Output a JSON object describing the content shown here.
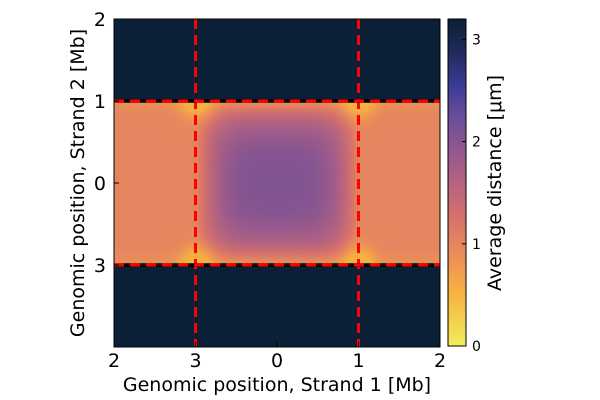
{
  "chart_data": {
    "type": "heatmap",
    "title": "",
    "xlabel": "Genomic position, Strand 1 [Mb]",
    "ylabel": "Genomic position, Strand 2 [Mb]",
    "x_ticks": [
      "2",
      "3",
      "0",
      "1",
      "2"
    ],
    "y_ticks": [
      "2",
      "1",
      "0",
      "3"
    ],
    "colorbar": {
      "label": "Average distance [μm]",
      "ticks": [
        "0",
        "1",
        "2",
        "3"
      ],
      "range": [
        0,
        3.2
      ],
      "colors": [
        "#f2ec5c",
        "#f8b340",
        "#eb8d59",
        "#d4706e",
        "#a45d88",
        "#6a4d9a",
        "#3a3b94",
        "#1f2a5c",
        "#0b2036"
      ]
    },
    "regions": {
      "background_value": 3.2,
      "band_y_range": [
        1,
        3
      ],
      "edge_value": 1.0,
      "center_value": 2.0,
      "hotspot_value": 0.55
    },
    "dashed_lines": {
      "color": "#ff0000",
      "vertical_at_ticks": [
        "3",
        "1"
      ],
      "horizontal_at_ticks": [
        "1",
        "3"
      ]
    }
  }
}
